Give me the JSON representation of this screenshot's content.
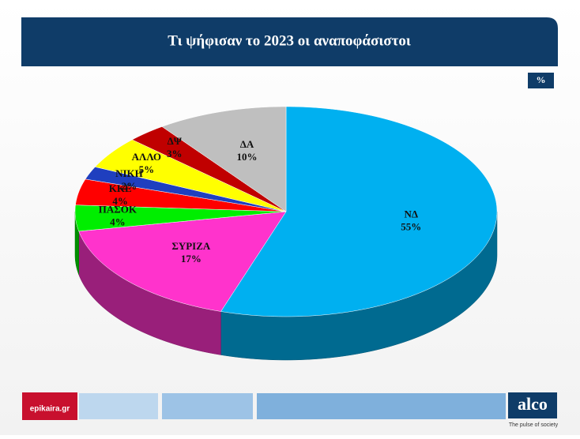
{
  "chart_data": {
    "type": "pie3d",
    "title": "Τι ψήφισαν το 2023 οι αναποφάσιστοι",
    "unit_label": "%",
    "categories": [
      "ΝΔ",
      "ΣΥΡΙΖΑ",
      "ΠΑΣΟΚ",
      "ΚΚΕ",
      "ΝΙΚΗ",
      "ΑΛΛΟ",
      "ΔΨ",
      "ΔΑ"
    ],
    "values": [
      55,
      17,
      4,
      4,
      2,
      5,
      3,
      10
    ],
    "value_labels": [
      "55%",
      "17%",
      "4%",
      "4%",
      "2%",
      "5%",
      "3%",
      "10%"
    ],
    "colors": [
      "#00b0f0",
      "#ff33cc",
      "#00ee00",
      "#ff0000",
      "#1f3fbf",
      "#ffff00",
      "#c00000",
      "#bfbfbf"
    ]
  },
  "footer": {
    "source": "epikaira.gr",
    "brand": "alco",
    "tagline": "The pulse of society"
  }
}
